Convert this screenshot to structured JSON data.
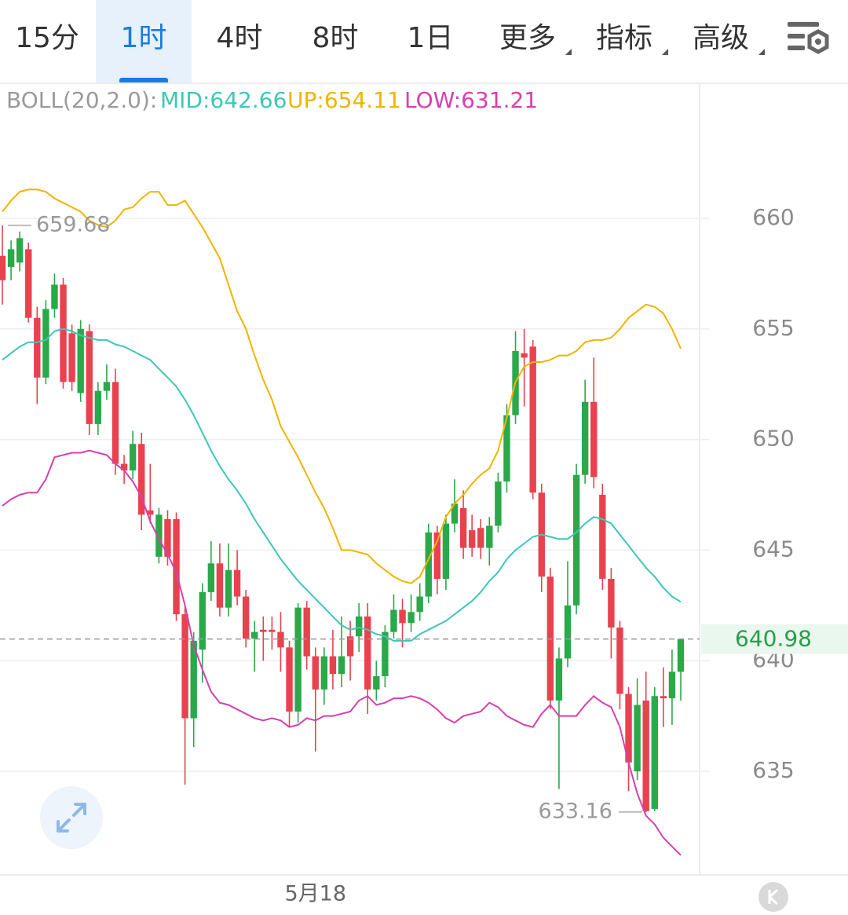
{
  "tabs": [
    "15分",
    "1时",
    "4时",
    "8时",
    "1日",
    "更多",
    "指标",
    "高级"
  ],
  "active_tab": 1,
  "chart_data": {
    "type": "candlestick",
    "indicator": {
      "title": "BOLL(20,2.0):",
      "lines": [
        {
          "label": "MID:642.66",
          "color": "#3cc8b4",
          "values": [
            653.6,
            653.9,
            654.2,
            654.4,
            654.4,
            654.5,
            654.9,
            655.0,
            654.9,
            654.7,
            654.6,
            654.5,
            654.5,
            654.3,
            654.2,
            654.0,
            653.8,
            653.6,
            653.2,
            652.8,
            652.4,
            651.8,
            651.1,
            650.3,
            649.5,
            648.8,
            648.2,
            647.7,
            647.1,
            646.4,
            645.8,
            645.2,
            644.6,
            644.1,
            643.6,
            643.2,
            642.8,
            642.4,
            642.0,
            641.6,
            641.4,
            641.5,
            641.4,
            641.2,
            641.1,
            640.9,
            640.9,
            640.9,
            641.2,
            641.4,
            641.6,
            641.8,
            642.1,
            642.4,
            642.7,
            643.1,
            643.6,
            644.0,
            644.6,
            645.0,
            645.3,
            645.6,
            645.7,
            645.6,
            645.5,
            645.5,
            645.8,
            646.2,
            646.5,
            646.4,
            646.2,
            645.7,
            645.2,
            644.7,
            644.2,
            643.8,
            643.3,
            642.9,
            642.66
          ]
        },
        {
          "label": "UP:654.11",
          "color": "#f0b400",
          "values": [
            660.3,
            660.8,
            661.2,
            661.3,
            661.3,
            661.2,
            660.9,
            660.7,
            660.5,
            660.3,
            659.9,
            659.7,
            659.6,
            659.9,
            660.4,
            660.5,
            660.9,
            661.2,
            661.2,
            660.6,
            660.6,
            660.8,
            660.2,
            659.6,
            658.9,
            658.2,
            657.0,
            655.8,
            655.0,
            653.8,
            652.7,
            651.8,
            650.6,
            649.9,
            649.2,
            648.4,
            647.6,
            646.9,
            646.0,
            645.0,
            645.0,
            644.9,
            644.8,
            644.4,
            644.1,
            643.8,
            643.6,
            643.5,
            643.8,
            644.6,
            645.4,
            646.5,
            647.1,
            647.5,
            648.0,
            648.4,
            648.7,
            649.5,
            651.0,
            652.6,
            653.3,
            653.5,
            653.5,
            653.6,
            653.8,
            653.8,
            654.0,
            654.4,
            654.5,
            654.5,
            654.6,
            655.0,
            655.5,
            655.8,
            656.1,
            656.0,
            655.7,
            655.0,
            654.11
          ]
        },
        {
          "label": "LOW:631.21",
          "color": "#d63fb0",
          "values": [
            647.0,
            647.3,
            647.5,
            647.6,
            647.6,
            648.2,
            649.2,
            649.3,
            649.4,
            649.4,
            649.5,
            649.4,
            649.3,
            648.9,
            648.6,
            648.1,
            647.4,
            646.3,
            645.5,
            644.8,
            644.0,
            642.5,
            640.7,
            639.6,
            638.6,
            638.1,
            638.0,
            637.8,
            637.6,
            637.4,
            637.3,
            637.4,
            637.3,
            637.0,
            637.1,
            637.4,
            637.3,
            637.5,
            637.5,
            637.6,
            637.7,
            638.2,
            638.4,
            638.0,
            638.1,
            638.3,
            638.3,
            638.4,
            638.3,
            638.1,
            637.8,
            637.4,
            637.2,
            637.5,
            637.6,
            637.7,
            638.1,
            637.9,
            637.5,
            637.3,
            637.1,
            637.0,
            637.6,
            638.0,
            637.5,
            637.5,
            637.5,
            638.0,
            638.4,
            638.1,
            637.9,
            637.0,
            635.4,
            634.0,
            633.0,
            632.6,
            632.0,
            631.6,
            631.21
          ]
        }
      ]
    },
    "categories": [
      null,
      null,
      null,
      null,
      null,
      null,
      null,
      null,
      null,
      null,
      null,
      null,
      null,
      null,
      null,
      null,
      null,
      null,
      null,
      null,
      null,
      null,
      null,
      null,
      null,
      null,
      null,
      null,
      null,
      null,
      null,
      null,
      null,
      null,
      null,
      null,
      "5月18",
      null,
      null,
      null,
      null,
      null,
      null,
      null,
      null,
      null,
      null,
      null,
      null,
      null,
      null,
      null,
      null,
      null,
      null,
      null,
      null,
      null,
      null,
      null,
      null,
      null,
      null,
      null,
      null,
      null,
      null,
      null,
      null,
      null,
      null,
      null,
      null,
      null,
      null,
      null,
      null,
      null,
      null
    ],
    "open": [
      658.3,
      657.8,
      658.0,
      658.6,
      655.5,
      652.8,
      655.9,
      657.0,
      654.8,
      652.1,
      654.9,
      650.7,
      652.2,
      652.6,
      648.9,
      648.6,
      649.8,
      646.8,
      644.7,
      646.4,
      646.4,
      642.1,
      637.4,
      640.5,
      643.1,
      644.4,
      642.4,
      644.1,
      642.9,
      641.0,
      641.4,
      641.4,
      641.3,
      640.6,
      637.7,
      642.4,
      640.2,
      638.7,
      640.2,
      639.4,
      641.1,
      641.1,
      642.0,
      638.7,
      639.3,
      641.3,
      642.3,
      641.7,
      642.2,
      642.9,
      645.8,
      643.7,
      646.2,
      646.9,
      645.9,
      646.0,
      645.1,
      646.1,
      648.1,
      651.1,
      653.9,
      654.2,
      647.6,
      643.8,
      638.2,
      640.1,
      642.5,
      648.4,
      651.7,
      647.5,
      643.7,
      641.5,
      638.5,
      635.0,
      638.2,
      633.3,
      638.4,
      638.3,
      639.5
    ],
    "high": [
      659.68,
      659.0,
      659.4,
      658.9,
      656.0,
      656.3,
      657.5,
      657.3,
      655.2,
      655.4,
      655.2,
      652.6,
      653.4,
      653.2,
      649.3,
      650.4,
      650.3,
      648.9,
      646.9,
      646.8,
      646.7,
      642.5,
      641.3,
      643.5,
      645.4,
      645.3,
      645.3,
      645.0,
      643.2,
      641.8,
      642.0,
      642.0,
      642.2,
      640.9,
      642.6,
      642.7,
      640.6,
      640.6,
      641.4,
      642.0,
      641.8,
      642.6,
      642.6,
      640.0,
      641.6,
      643.0,
      642.8,
      643.0,
      643.5,
      646.2,
      646.1,
      646.6,
      648.2,
      647.7,
      646.6,
      646.4,
      646.5,
      648.5,
      651.6,
      654.9,
      655.0,
      654.5,
      648.0,
      644.2,
      640.6,
      644.5,
      648.9,
      652.7,
      653.7,
      648.0,
      644.2,
      641.8,
      638.8,
      639.2,
      639.5,
      638.8,
      639.7,
      640.5,
      641.0
    ],
    "low": [
      656.1,
      657.2,
      657.6,
      655.3,
      651.6,
      652.5,
      655.5,
      652.3,
      652.2,
      651.7,
      650.2,
      650.2,
      651.8,
      648.4,
      648.0,
      648.2,
      645.9,
      646.2,
      644.4,
      644.3,
      641.8,
      634.4,
      636.1,
      639.0,
      642.7,
      642.0,
      642.0,
      642.5,
      640.6,
      639.5,
      640.0,
      640.5,
      639.5,
      637.0,
      637.2,
      639.6,
      635.9,
      638.0,
      638.7,
      638.8,
      639.1,
      640.4,
      637.6,
      638.2,
      638.8,
      641.0,
      640.6,
      641.3,
      641.8,
      642.6,
      643.0,
      643.2,
      645.8,
      644.6,
      644.7,
      644.6,
      644.3,
      645.8,
      647.6,
      650.7,
      651.5,
      647.3,
      643.1,
      637.8,
      634.2,
      639.7,
      642.1,
      648.0,
      647.8,
      643.2,
      640.1,
      637.8,
      634.1,
      634.6,
      633.16,
      633.2,
      637.0,
      637.1,
      638.2
    ],
    "close": [
      657.2,
      658.6,
      659.1,
      655.5,
      652.8,
      655.9,
      657.0,
      652.6,
      652.6,
      655.0,
      650.7,
      652.2,
      652.6,
      648.9,
      648.6,
      649.8,
      646.6,
      646.6,
      646.6,
      644.7,
      642.1,
      637.4,
      640.9,
      643.1,
      644.4,
      642.4,
      644.1,
      642.9,
      641.0,
      641.3,
      641.3,
      641.3,
      640.6,
      637.7,
      642.4,
      640.2,
      638.7,
      640.2,
      639.4,
      640.2,
      640.2,
      642.0,
      638.7,
      639.3,
      641.3,
      642.3,
      641.7,
      642.2,
      642.9,
      645.8,
      643.7,
      646.2,
      647.1,
      645.1,
      645.1,
      645.1,
      646.1,
      648.1,
      651.1,
      654.0,
      653.7,
      647.6,
      643.8,
      638.2,
      640.1,
      642.5,
      648.4,
      651.7,
      648.3,
      643.7,
      641.5,
      638.5,
      635.4,
      638.0,
      633.2,
      638.4,
      638.3,
      639.5,
      640.98
    ],
    "up_color": "#2ba84a",
    "down_color": "#e8424f",
    "ylim": [
      630.35,
      666.07
    ],
    "yticks": [
      635,
      640,
      645,
      650,
      655,
      660
    ],
    "grid": true,
    "high_mark": 659.68,
    "low_mark": 633.16,
    "last_price": 640.98
  }
}
